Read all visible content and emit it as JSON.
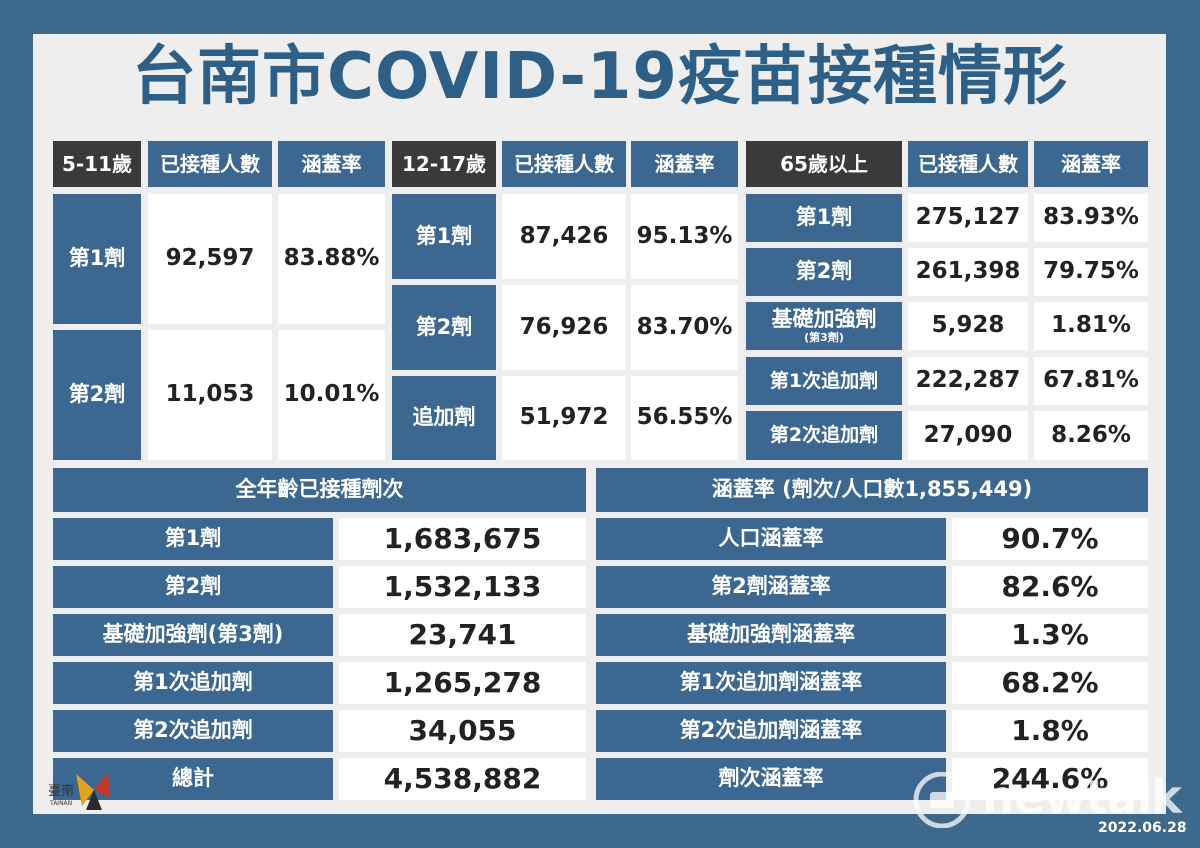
{
  "title": "台南市COVID-19疫苗接種情形",
  "group1": {
    "h_age": "5-11歲",
    "h_count": "已接種人數",
    "h_rate": "涵蓋率",
    "rows": [
      {
        "label": "第1劑",
        "count": "92,597",
        "rate": "83.88%"
      },
      {
        "label": "第2劑",
        "count": "11,053",
        "rate": "10.01%"
      }
    ]
  },
  "group2": {
    "h_age": "12-17歲",
    "h_count": "已接種人數",
    "h_rate": "涵蓋率",
    "rows": [
      {
        "label": "第1劑",
        "count": "87,426",
        "rate": "95.13%"
      },
      {
        "label": "第2劑",
        "count": "76,926",
        "rate": "83.70%"
      },
      {
        "label": "追加劑",
        "count": "51,972",
        "rate": "56.55%"
      }
    ]
  },
  "group3": {
    "h_age": "65歲以上",
    "h_count": "已接種人數",
    "h_rate": "涵蓋率",
    "rows": [
      {
        "label": "第1劑",
        "count": "275,127",
        "rate": "83.93%"
      },
      {
        "label": "第2劑",
        "count": "261,398",
        "rate": "79.75%"
      },
      {
        "label": "基礎加強劑",
        "sub": "(第3劑)",
        "count": "5,928",
        "rate": "1.81%"
      },
      {
        "label": "第1次追加劑",
        "count": "222,287",
        "rate": "67.81%"
      },
      {
        "label": "第2次追加劑",
        "count": "27,090",
        "rate": "8.26%"
      }
    ]
  },
  "doses": {
    "header": "全年齡已接種劑次",
    "rows": [
      {
        "label": "第1劑",
        "value": "1,683,675"
      },
      {
        "label": "第2劑",
        "value": "1,532,133"
      },
      {
        "label": "基礎加強劑(第3劑)",
        "value": "23,741"
      },
      {
        "label": "第1次追加劑",
        "value": "1,265,278"
      },
      {
        "label": "第2次追加劑",
        "value": "34,055"
      },
      {
        "label": "總計",
        "value": "4,538,882"
      }
    ]
  },
  "coverage": {
    "header": "涵蓋率 (劑次/人口數1,855,449)",
    "rows": [
      {
        "label": "人口涵蓋率",
        "value": "90.7%"
      },
      {
        "label": "第2劑涵蓋率",
        "value": "82.6%"
      },
      {
        "label": "基礎加強劑涵蓋率",
        "value": "1.3%"
      },
      {
        "label": "第1次追加劑涵蓋率",
        "value": "68.2%"
      },
      {
        "label": "第2次追加劑涵蓋率",
        "value": "1.8%"
      },
      {
        "label": "劑次涵蓋率",
        "value": "244.6%"
      }
    ]
  },
  "logo": {
    "text": "臺南",
    "sub": "TAINAN"
  },
  "brand": "newtalk",
  "date": "2022.06.28",
  "colors": {
    "background": "#3d6a8c",
    "label_blue": "#3c6790",
    "header_dark": "#3a3a3a",
    "title": "#2e5f86"
  }
}
